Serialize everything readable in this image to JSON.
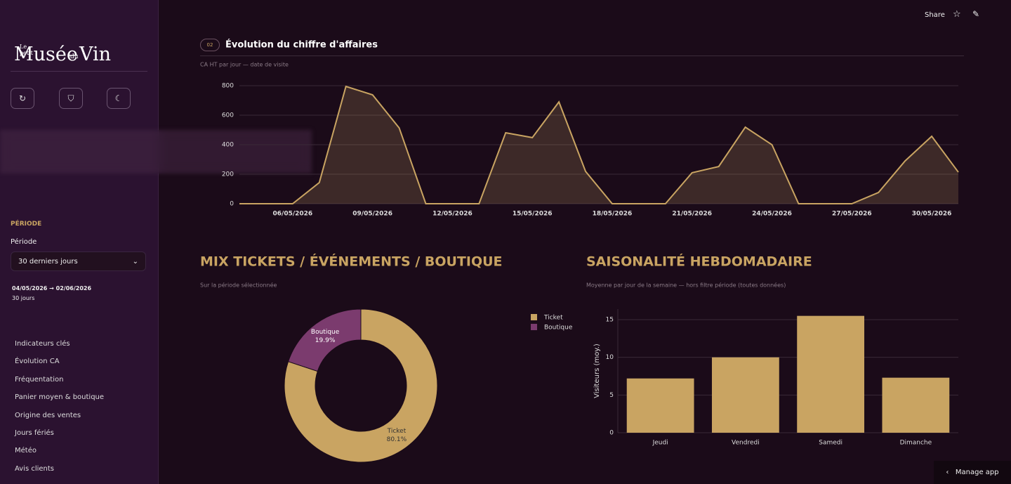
{
  "sidebar": {
    "logo": {
      "small": "Le petit",
      "main": "Musée",
      "du": "du",
      "end": "Vin"
    },
    "section_label": "PÉRIODE",
    "field_label": "Période",
    "select_value": "30 derniers jours",
    "range": "04/05/2026 → 02/06/2026",
    "days": "30 jours",
    "nav": [
      "Indicateurs clés",
      "Évolution CA",
      "Fréquentation",
      "Panier moyen & boutique",
      "Origine des ventes",
      "Jours fériés",
      "Météo",
      "Avis clients"
    ]
  },
  "header": {
    "share": "Share"
  },
  "badge": "02",
  "manage": "Manage app",
  "chart_data": [
    {
      "type": "line",
      "title": "Évolution du chiffre d'affaires",
      "subtitle": "CA HT par jour — date de visite",
      "x": [
        "04/05/2026",
        "05/05/2026",
        "06/05/2026",
        "07/05/2026",
        "08/05/2026",
        "09/05/2026",
        "10/05/2026",
        "11/05/2026",
        "12/05/2026",
        "13/05/2026",
        "14/05/2026",
        "15/05/2026",
        "16/05/2026",
        "17/05/2026",
        "18/05/2026",
        "19/05/2026",
        "20/05/2026",
        "21/05/2026",
        "22/05/2026",
        "23/05/2026",
        "24/05/2026",
        "25/05/2026",
        "26/05/2026",
        "27/05/2026",
        "28/05/2026",
        "29/05/2026",
        "30/05/2026",
        "31/05/2026"
      ],
      "values": [
        0,
        0,
        0,
        143,
        795,
        738,
        514,
        0,
        0,
        0,
        481,
        448,
        690,
        219,
        0,
        0,
        0,
        210,
        252,
        519,
        400,
        0,
        0,
        0,
        76,
        290,
        457,
        214
      ],
      "color": "#c9a462",
      "xlim": [
        "04/05/2026",
        "31/05/2026"
      ],
      "xticks": [
        "06/05/2026",
        "09/05/2026",
        "12/05/2026",
        "15/05/2026",
        "18/05/2026",
        "21/05/2026",
        "24/05/2026",
        "27/05/2026",
        "30/05/2026"
      ],
      "ylim": [
        0,
        800
      ],
      "yticks": [
        0,
        200,
        400,
        600,
        800
      ],
      "grid": true
    },
    {
      "type": "pie",
      "title": "MIX TICKETS / ÉVÉNEMENTS / BOUTIQUE",
      "subtitle": "Sur la période sélectionnée",
      "categories": [
        "Ticket",
        "Boutique"
      ],
      "values": [
        80.1,
        19.9
      ],
      "value_labels": [
        "80.1%",
        "19.9%"
      ],
      "colors": [
        "#c9a462",
        "#7b3b6e"
      ],
      "legend": "top-right"
    },
    {
      "type": "bar",
      "title": "SAISONALITÉ HEBDOMADAIRE",
      "subtitle": "Moyenne par jour de la semaine — hors filtre période (toutes données)",
      "ylabel": "Visiteurs (moy.)",
      "categories": [
        "Jeudi",
        "Vendredi",
        "Samedi",
        "Dimanche"
      ],
      "values": [
        7.2,
        10.0,
        15.5,
        7.3
      ],
      "color": "#c9a462",
      "ylim": [
        0,
        16.4
      ],
      "yticks": [
        0,
        5,
        10,
        15
      ],
      "grid": true
    }
  ]
}
